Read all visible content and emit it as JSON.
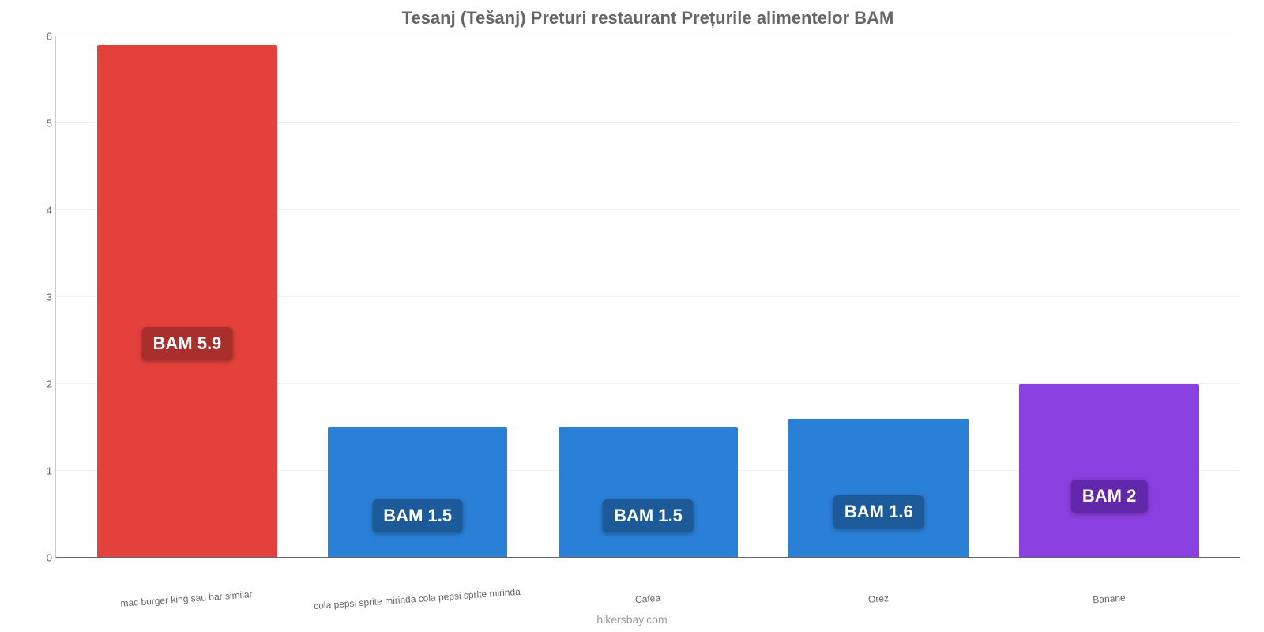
{
  "chart": {
    "type": "bar",
    "title": "Tesanj (Tešanj) Preturi restaurant Prețurile alimentelor BAM",
    "title_fontsize": 22,
    "title_color": "#666666",
    "background_color": "#ffffff",
    "grid_color": "#f0f0f0",
    "axis_color": "#cccccc",
    "ylim": [
      0,
      6
    ],
    "ytick_step": 1,
    "yticks": [
      0,
      1,
      2,
      3,
      4,
      5,
      6
    ],
    "bar_width": 0.78,
    "categories": [
      "mac burger king sau bar similar",
      "cola pepsi sprite mirinda cola pepsi sprite mirinda",
      "Cafea",
      "Orez",
      "Banane"
    ],
    "values": [
      5.9,
      1.5,
      1.5,
      1.6,
      2
    ],
    "value_labels": [
      "BAM 5.9",
      "BAM 1.5",
      "BAM 1.5",
      "BAM 1.6",
      "BAM 2"
    ],
    "bar_colors": [
      "#e4403c",
      "#2a7fd6",
      "#2a7fd6",
      "#2a7fd6",
      "#8a3fe0"
    ],
    "label_bg_colors": [
      "#a82f2c",
      "#1d5a99",
      "#1d5a99",
      "#1d5a99",
      "#6327ab"
    ],
    "label_text_color": "#ffffff",
    "label_fontsize": 22,
    "x_label_fontsize": 12,
    "x_label_color": "#666666",
    "y_label_fontsize": 13,
    "y_label_color": "#666666",
    "source": "hikersbay.com",
    "source_color": "#999999"
  }
}
